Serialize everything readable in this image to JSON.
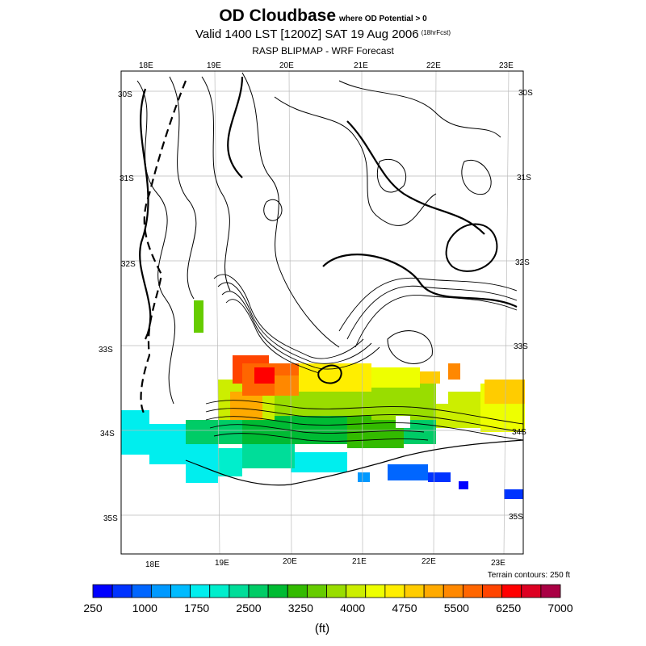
{
  "title": {
    "main": "OD Cloudbase",
    "qualifier": "where OD Potential > 0",
    "valid": "Valid 1400 LST [1200Z] SAT 19 Aug 2006",
    "forecast_hours": "(18hrFcst)",
    "source": "RASP BLIPMAP - WRF Forecast"
  },
  "map": {
    "lon_labels_top": [
      "18E",
      "19E",
      "20E",
      "21E",
      "22E",
      "23E"
    ],
    "lon_labels_bottom": [
      "18E",
      "19E",
      "20E",
      "21E",
      "22E",
      "23E"
    ],
    "lat_labels_left": [
      "30S",
      "31S",
      "32S",
      "33S",
      "34S",
      "35S"
    ],
    "lat_labels_right": [
      "30S",
      "31S",
      "32S",
      "33S",
      "34S",
      "35S"
    ],
    "terrain_note": "Terrain contours: 250 ft"
  },
  "colorbar": {
    "colors": [
      "#0000ff",
      "#0033ff",
      "#0066ff",
      "#0099ff",
      "#00bbff",
      "#00eeee",
      "#00eecc",
      "#00dd99",
      "#00cc66",
      "#00bb33",
      "#33bb00",
      "#66cc00",
      "#99dd00",
      "#ccee00",
      "#eeff00",
      "#ffee00",
      "#ffcc00",
      "#ffaa00",
      "#ff8800",
      "#ff6600",
      "#ff4400",
      "#ff0000",
      "#dd0022",
      "#aa0044"
    ],
    "labels": [
      "250",
      "1000",
      "1750",
      "2500",
      "3250",
      "4000",
      "4750",
      "5500",
      "6250",
      "7000"
    ],
    "unit": "(ft)"
  }
}
